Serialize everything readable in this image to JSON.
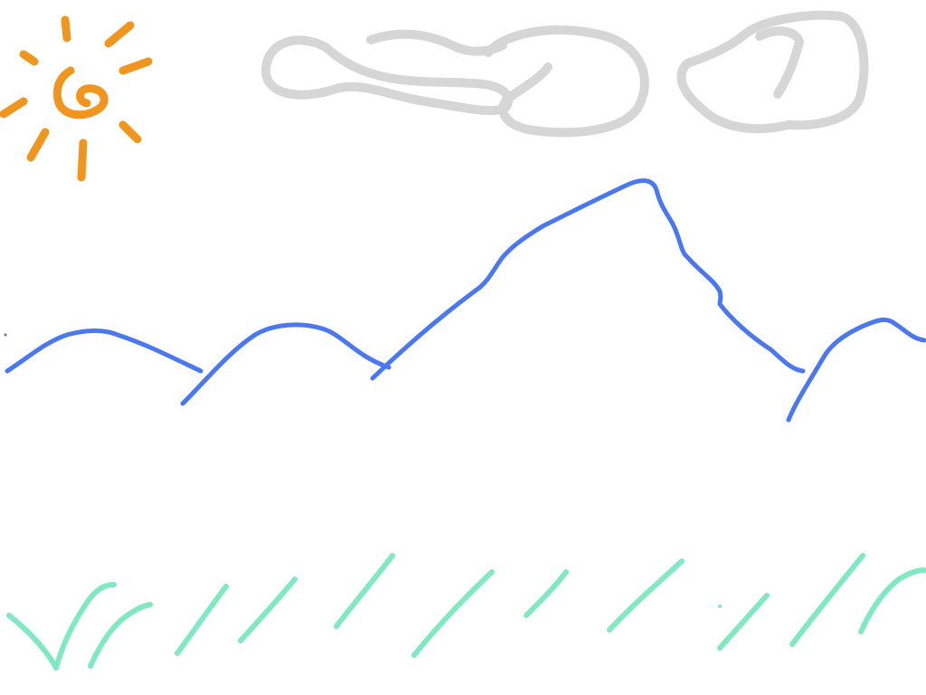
{
  "scene": {
    "description_visible_text": "",
    "colors": {
      "background": "#ffffff",
      "sun": "#f0961e",
      "cloud": "#d2d2d2",
      "mountains": "#4a78f0",
      "grass": "#7be8bf"
    },
    "elements": {
      "sun": "sun-doodle",
      "clouds": "cloud-doodles",
      "mountains": "mountain-outline",
      "grass": "grass-strokes"
    }
  }
}
